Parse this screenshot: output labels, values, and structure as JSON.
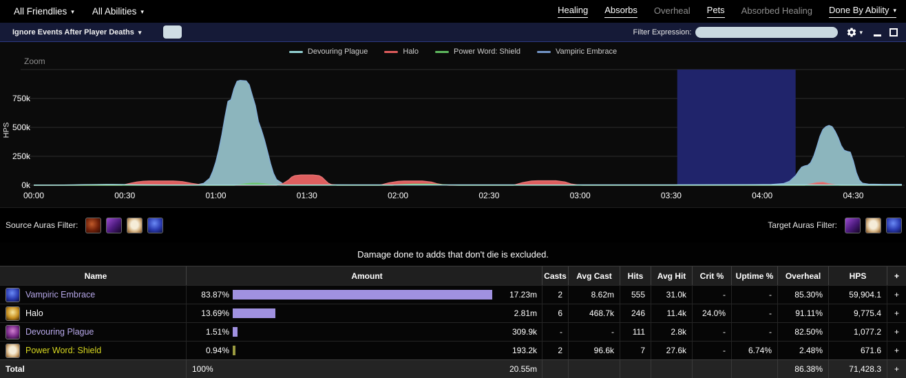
{
  "topbar": {
    "menus": [
      {
        "label": "All Friendlies"
      },
      {
        "label": "All Abilities"
      }
    ],
    "caret": "▾",
    "tabs": [
      {
        "label": "Healing"
      },
      {
        "label": "Absorbs"
      },
      {
        "label": "Overheal"
      },
      {
        "label": "Pets"
      },
      {
        "label": "Absorbed Healing"
      },
      {
        "label": "Done By Ability"
      }
    ]
  },
  "toolbar": {
    "deaths_dropdown_label": "Ignore Events After Player Deaths",
    "filter_label": "Filter Expression:",
    "filter_value": ""
  },
  "chart": {
    "zoom_label": "Zoom",
    "ylabel": "HPS",
    "legend": [
      {
        "label": "Devouring Plague",
        "color": "#93d2d4"
      },
      {
        "label": "Halo",
        "color": "#e05c5c"
      },
      {
        "label": "Power Word: Shield",
        "color": "#5fba5f"
      },
      {
        "label": "Vampiric Embrace",
        "color": "#7496c8"
      }
    ]
  },
  "chart_data": {
    "type": "area",
    "x_unit": "seconds",
    "y_unit": "HPS (thousands)",
    "xlim": [
      0,
      286
    ],
    "ylim_k": [
      0,
      1000
    ],
    "grid": true,
    "yticks": [
      {
        "k": 0,
        "label": "0k"
      },
      {
        "k": 250,
        "label": "250k"
      },
      {
        "k": 500,
        "label": "500k"
      },
      {
        "k": 750,
        "label": "750k"
      },
      {
        "k": 1000,
        "label": ""
      }
    ],
    "xticks": [
      {
        "t": 0,
        "label": "00:00"
      },
      {
        "t": 30,
        "label": "00:30"
      },
      {
        "t": 60,
        "label": "01:00"
      },
      {
        "t": 90,
        "label": "01:30"
      },
      {
        "t": 120,
        "label": "02:00"
      },
      {
        "t": 150,
        "label": "02:30"
      },
      {
        "t": 180,
        "label": "03:00"
      },
      {
        "t": 210,
        "label": "03:30"
      },
      {
        "t": 240,
        "label": "04:00"
      },
      {
        "t": 270,
        "label": "04:30"
      }
    ],
    "selection": {
      "t0": 212,
      "t1": 251,
      "color": "#20246b"
    },
    "series": [
      {
        "name": "Vampiric Embrace",
        "fill": "#8cb5bd",
        "stroke": "#84b0d8",
        "points": [
          [
            0,
            0
          ],
          [
            12,
            1
          ],
          [
            18,
            4
          ],
          [
            26,
            6
          ],
          [
            34,
            5
          ],
          [
            42,
            3
          ],
          [
            50,
            3
          ],
          [
            54,
            6
          ],
          [
            56,
            16
          ],
          [
            58,
            60
          ],
          [
            59,
            120
          ],
          [
            60,
            200
          ],
          [
            61,
            310
          ],
          [
            62,
            440
          ],
          [
            63,
            590
          ],
          [
            64,
            725
          ],
          [
            65,
            740
          ],
          [
            66,
            835
          ],
          [
            67,
            898
          ],
          [
            68,
            906
          ],
          [
            70,
            902
          ],
          [
            71,
            868
          ],
          [
            72,
            775
          ],
          [
            73,
            688
          ],
          [
            74,
            552
          ],
          [
            75,
            478
          ],
          [
            76,
            392
          ],
          [
            77,
            292
          ],
          [
            78,
            188
          ],
          [
            79,
            102
          ],
          [
            80,
            48
          ],
          [
            82,
            14
          ],
          [
            85,
            6
          ],
          [
            95,
            4
          ],
          [
            115,
            3
          ],
          [
            140,
            3
          ],
          [
            165,
            3
          ],
          [
            190,
            3
          ],
          [
            215,
            3
          ],
          [
            235,
            4
          ],
          [
            243,
            6
          ],
          [
            247,
            14
          ],
          [
            249,
            34
          ],
          [
            251,
            82
          ],
          [
            252,
            122
          ],
          [
            253,
            156
          ],
          [
            254,
            166
          ],
          [
            255,
            172
          ],
          [
            256,
            196
          ],
          [
            257,
            252
          ],
          [
            258,
            332
          ],
          [
            259,
            422
          ],
          [
            260,
            482
          ],
          [
            261,
            506
          ],
          [
            262,
            516
          ],
          [
            263,
            506
          ],
          [
            264,
            466
          ],
          [
            265,
            412
          ],
          [
            266,
            342
          ],
          [
            267,
            302
          ],
          [
            268,
            292
          ],
          [
            269,
            286
          ],
          [
            270,
            208
          ],
          [
            271,
            108
          ],
          [
            272,
            44
          ],
          [
            273,
            17
          ],
          [
            275,
            9
          ],
          [
            280,
            7
          ],
          [
            286,
            7
          ]
        ]
      },
      {
        "name": "Halo",
        "fill": "#df5f5f",
        "stroke": "#e57373",
        "points": [
          [
            0,
            0
          ],
          [
            29,
            0
          ],
          [
            32,
            18
          ],
          [
            34,
            28
          ],
          [
            36,
            34
          ],
          [
            38,
            36
          ],
          [
            46,
            36
          ],
          [
            49,
            31
          ],
          [
            52,
            16
          ],
          [
            55,
            4
          ],
          [
            57,
            0
          ],
          [
            80,
            0
          ],
          [
            82,
            12
          ],
          [
            84,
            45
          ],
          [
            85,
            70
          ],
          [
            86,
            82
          ],
          [
            88,
            88
          ],
          [
            92,
            88
          ],
          [
            94,
            82
          ],
          [
            95,
            68
          ],
          [
            96,
            42
          ],
          [
            97,
            18
          ],
          [
            98,
            6
          ],
          [
            100,
            0
          ],
          [
            114,
            0
          ],
          [
            117,
            20
          ],
          [
            120,
            33
          ],
          [
            122,
            36
          ],
          [
            128,
            36
          ],
          [
            131,
            27
          ],
          [
            133,
            12
          ],
          [
            135,
            3
          ],
          [
            137,
            0
          ],
          [
            158,
            0
          ],
          [
            161,
            22
          ],
          [
            164,
            36
          ],
          [
            166,
            38
          ],
          [
            172,
            38
          ],
          [
            175,
            28
          ],
          [
            177,
            11
          ],
          [
            179,
            3
          ],
          [
            181,
            0
          ],
          [
            254,
            0
          ],
          [
            256,
            10
          ],
          [
            258,
            20
          ],
          [
            260,
            24
          ],
          [
            262,
            12
          ],
          [
            264,
            3
          ],
          [
            266,
            0
          ],
          [
            286,
            0
          ]
        ]
      },
      {
        "name": "Power Word: Shield",
        "fill": "#62ba62",
        "stroke": "#74c874",
        "points": [
          [
            0,
            0
          ],
          [
            66,
            0
          ],
          [
            68,
            5
          ],
          [
            70,
            13
          ],
          [
            72,
            17
          ],
          [
            74,
            17
          ],
          [
            76,
            12
          ],
          [
            78,
            5
          ],
          [
            80,
            2
          ],
          [
            83,
            0
          ],
          [
            118,
            0
          ],
          [
            121,
            5
          ],
          [
            125,
            9
          ],
          [
            130,
            9
          ],
          [
            134,
            5
          ],
          [
            137,
            2
          ],
          [
            140,
            0
          ],
          [
            286,
            0
          ]
        ]
      },
      {
        "name": "Devouring Plague",
        "fill": "none",
        "stroke": "#a3dde2",
        "points": [
          [
            0,
            1
          ],
          [
            8,
            1
          ],
          [
            14,
            3
          ],
          [
            18,
            5
          ],
          [
            24,
            6
          ],
          [
            30,
            5
          ],
          [
            36,
            3
          ],
          [
            44,
            2
          ],
          [
            60,
            2
          ],
          [
            90,
            2
          ],
          [
            120,
            2
          ],
          [
            150,
            2
          ],
          [
            180,
            2
          ],
          [
            210,
            2
          ],
          [
            235,
            3
          ],
          [
            255,
            3
          ],
          [
            270,
            2
          ],
          [
            286,
            2
          ]
        ]
      }
    ]
  },
  "aura_filters": {
    "source_label": "Source Auras Filter:",
    "target_label": "Target Auras Filter:"
  },
  "banner": {
    "text": "Damage done to adds that don't die is excluded."
  },
  "table": {
    "columns": [
      "Name",
      "Amount",
      "Casts",
      "Avg Cast",
      "Hits",
      "Avg Hit",
      "Crit %",
      "Uptime %",
      "Overheal",
      "HPS",
      "+"
    ],
    "plus_label": "+",
    "rows": [
      {
        "name": "Vampiric Embrace",
        "name_color": "#b7a8ea",
        "bar_color": "#a091e0",
        "pct": "83.87%",
        "pct_value": 83.87,
        "amount": "17.23m",
        "casts": "2",
        "avg_cast": "8.62m",
        "hits": "555",
        "avg_hit": "31.0k",
        "crit": "-",
        "uptime": "-",
        "overheal": "85.30%",
        "hps": "59,904.1"
      },
      {
        "name": "Halo",
        "name_color": "#ffffff",
        "bar_color": "#a091e0",
        "pct": "13.69%",
        "pct_value": 13.69,
        "amount": "2.81m",
        "casts": "6",
        "avg_cast": "468.7k",
        "hits": "246",
        "avg_hit": "11.4k",
        "crit": "24.0%",
        "uptime": "-",
        "overheal": "91.11%",
        "hps": "9,775.4"
      },
      {
        "name": "Devouring Plague",
        "name_color": "#b7a8ea",
        "bar_color": "#a091e0",
        "pct": "1.51%",
        "pct_value": 1.51,
        "amount": "309.9k",
        "casts": "-",
        "avg_cast": "-",
        "hits": "111",
        "avg_hit": "2.8k",
        "crit": "-",
        "uptime": "-",
        "overheal": "82.50%",
        "hps": "1,077.2"
      },
      {
        "name": "Power Word: Shield",
        "name_color": "#d8d820",
        "bar_color": "#9a9a40",
        "pct": "0.94%",
        "pct_value": 0.94,
        "amount": "193.2k",
        "casts": "2",
        "avg_cast": "96.6k",
        "hits": "7",
        "avg_hit": "27.6k",
        "crit": "-",
        "uptime": "6.74%",
        "overheal": "2.48%",
        "hps": "671.6"
      }
    ],
    "total": {
      "name": "Total",
      "pct": "100%",
      "amount": "20.55m",
      "casts": "",
      "avg_cast": "",
      "hits": "",
      "avg_hit": "",
      "crit": "",
      "uptime": "",
      "overheal": "86.38%",
      "hps": "71,428.3"
    }
  }
}
